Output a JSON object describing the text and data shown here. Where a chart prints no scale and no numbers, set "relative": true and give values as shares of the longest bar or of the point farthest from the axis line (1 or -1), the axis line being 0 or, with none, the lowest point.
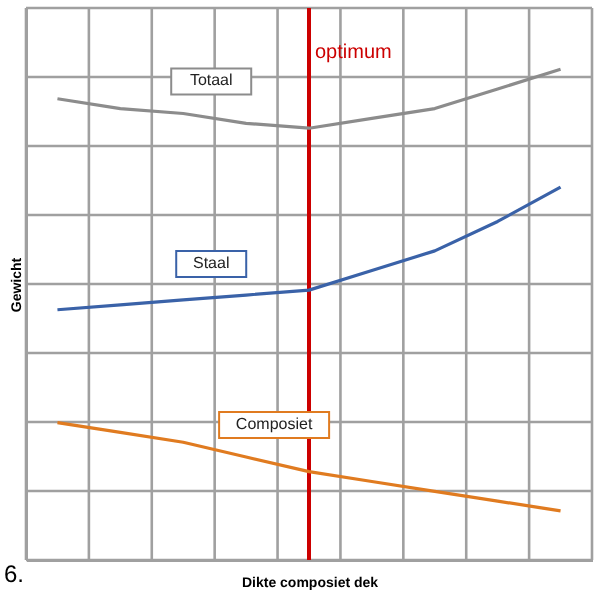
{
  "chart_data": {
    "type": "line",
    "relative": true,
    "xlabel": "Dikte composiet dek",
    "ylabel": "Gewicht",
    "annotations": [
      "6."
    ],
    "categories": [
      null,
      null,
      null,
      null,
      null,
      null,
      null,
      null,
      null
    ],
    "grid": true,
    "marker": "none",
    "line_style": "solid",
    "series": [
      {
        "name": "Totaal",
        "color": "#8c8c8c",
        "values": [
          0.94,
          0.92,
          0.91,
          0.89,
          0.88,
          0.9,
          0.92,
          0.96,
          1
        ]
      },
      {
        "name": "Staal",
        "color": "#3a62a8",
        "values": [
          0.51,
          0.52,
          0.53,
          0.54,
          0.55,
          0.59,
          0.63,
          0.69,
          0.76
        ]
      },
      {
        "name": "Composiet",
        "color": "#e07b20",
        "values": [
          0.28,
          0.26,
          0.24,
          0.21,
          0.18,
          0.16,
          0.14,
          0.12,
          0.1
        ]
      }
    ],
    "ref_lines": [
      {
        "axis": "x",
        "label": "optimum",
        "color": "#cc0000"
      }
    ]
  }
}
